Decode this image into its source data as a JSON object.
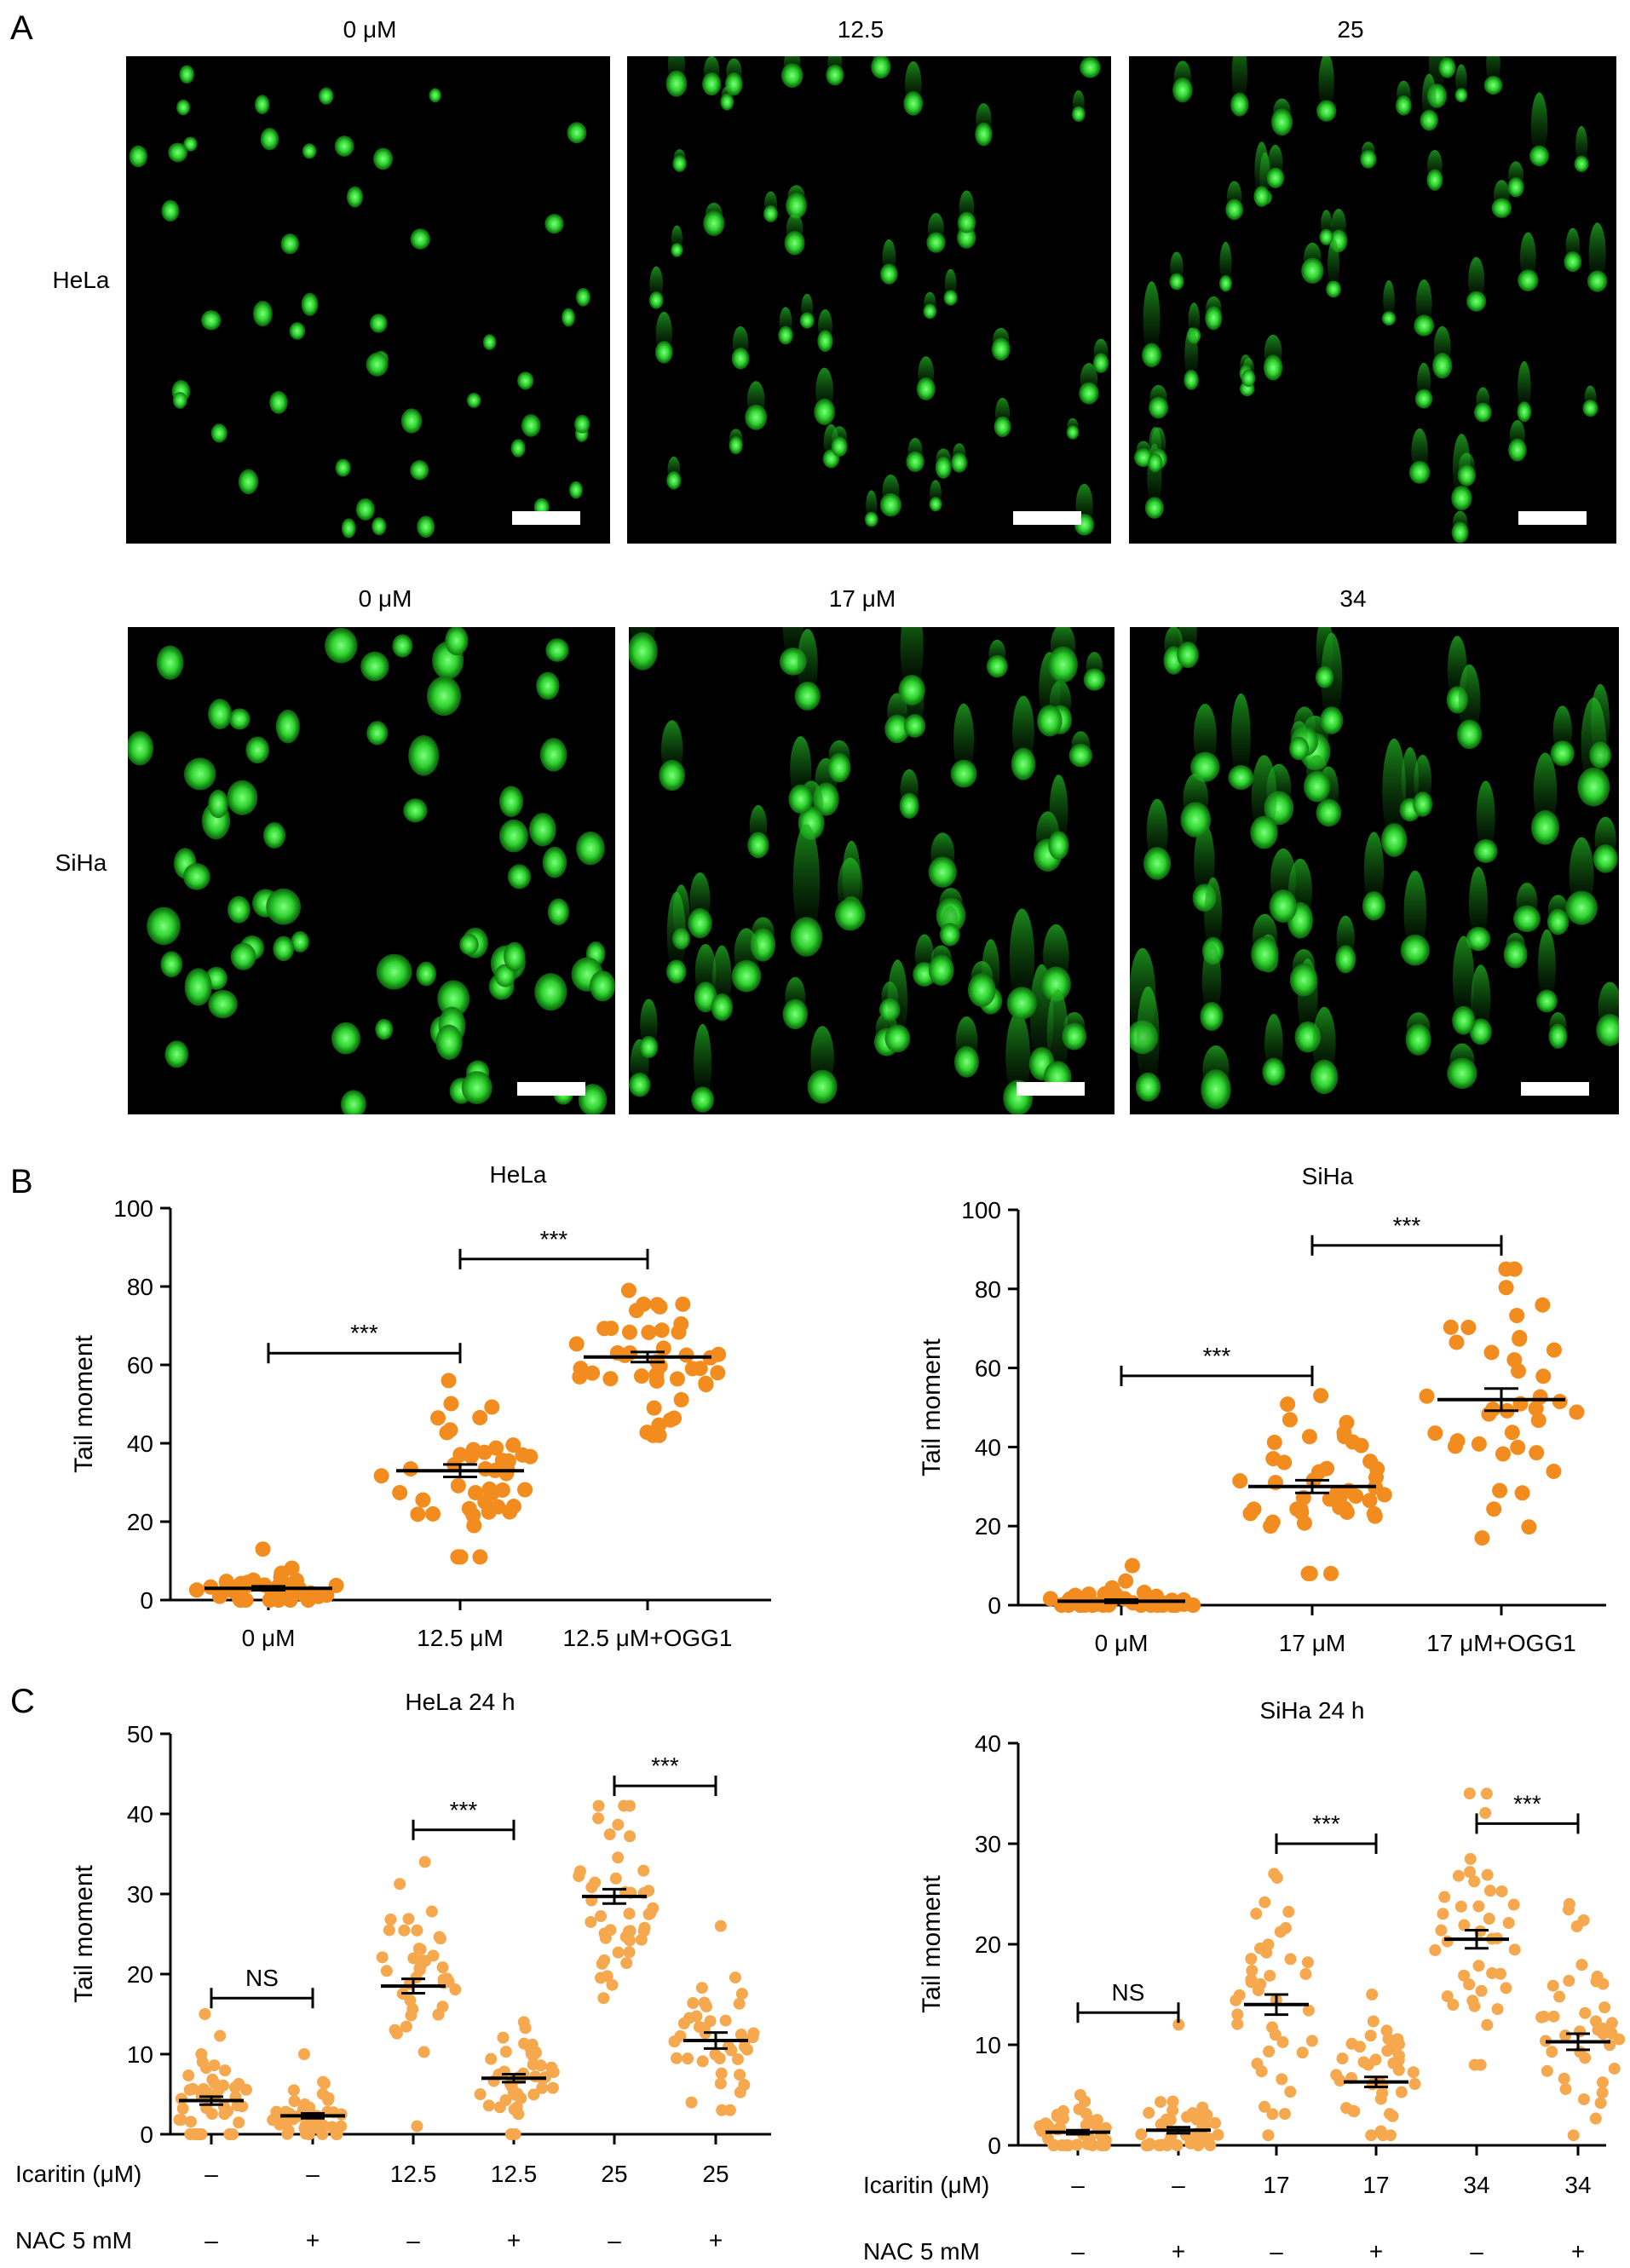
{
  "panels": {
    "A": {
      "letter": "A",
      "rows": [
        {
          "label": "HeLa",
          "images": [
            {
              "title": "0 μM",
              "comet_level": 0.0
            },
            {
              "title": "12.5",
              "comet_level": 0.4
            },
            {
              "title": "25",
              "comet_level": 0.9
            }
          ]
        },
        {
          "label": "SiHa",
          "images": [
            {
              "title": "0 μM",
              "comet_level": 0.0
            },
            {
              "title": "17 μM",
              "comet_level": 0.85
            },
            {
              "title": "34",
              "comet_level": 0.9
            }
          ]
        }
      ]
    },
    "B": {
      "letter": "B"
    },
    "C": {
      "letter": "C"
    }
  },
  "chart_data": [
    {
      "id": "B-HeLa",
      "type": "scatter",
      "title": "HeLa",
      "ylabel": "Tail moment",
      "ylim": [
        0,
        100
      ],
      "yticks": [
        0,
        20,
        40,
        60,
        80,
        100
      ],
      "categories": [
        "0 μM",
        "12.5 μM",
        "12.5 μM+OGG1"
      ],
      "groups": [
        {
          "mean": 3,
          "sem": 0.5,
          "n": 40,
          "sd": 2.2,
          "min": 0,
          "max": 13
        },
        {
          "mean": 33,
          "sem": 1.6,
          "n": 45,
          "sd": 10,
          "min": 11,
          "max": 56
        },
        {
          "mean": 62,
          "sem": 1.3,
          "n": 45,
          "sd": 8.5,
          "min": 42,
          "max": 79
        }
      ],
      "significance": [
        {
          "from": 0,
          "to": 1,
          "label": "***",
          "y": 63
        },
        {
          "from": 1,
          "to": 2,
          "label": "***",
          "y": 87
        }
      ],
      "color": "#f28c1e"
    },
    {
      "id": "B-SiHa",
      "type": "scatter",
      "title": "SiHa",
      "ylabel": "Tail moment",
      "ylim": [
        0,
        100
      ],
      "yticks": [
        0,
        20,
        40,
        60,
        80,
        100
      ],
      "categories": [
        "0 μM",
        "17 μM",
        "17 μM+OGG1"
      ],
      "groups": [
        {
          "mean": 1,
          "sem": 0.4,
          "n": 40,
          "sd": 2,
          "min": 0,
          "max": 10
        },
        {
          "mean": 30,
          "sem": 1.6,
          "n": 45,
          "sd": 10,
          "min": 8,
          "max": 53
        },
        {
          "mean": 52,
          "sem": 2.8,
          "n": 40,
          "sd": 17,
          "min": 17,
          "max": 85
        }
      ],
      "significance": [
        {
          "from": 0,
          "to": 1,
          "label": "***",
          "y": 58
        },
        {
          "from": 1,
          "to": 2,
          "label": "***",
          "y": 91
        }
      ],
      "color": "#f28c1e"
    },
    {
      "id": "C-HeLa",
      "type": "scatter",
      "title": "HeLa 24 h",
      "ylabel": "Tail moment",
      "ylim": [
        0,
        50
      ],
      "yticks": [
        0,
        10,
        20,
        30,
        40,
        50
      ],
      "row_labels": [
        "Icaritin (μM)",
        "NAC 5 mM"
      ],
      "icaritin": [
        "–",
        "–",
        "12.5",
        "12.5",
        "25",
        "25"
      ],
      "nac": [
        "–",
        "+",
        "–",
        "+",
        "–",
        "+"
      ],
      "groups": [
        {
          "mean": 4.2,
          "sem": 0.5,
          "n": 45,
          "sd": 3,
          "min": 0,
          "max": 15
        },
        {
          "mean": 2.3,
          "sem": 0.3,
          "n": 40,
          "sd": 2,
          "min": 0,
          "max": 10
        },
        {
          "mean": 18.5,
          "sem": 0.9,
          "n": 40,
          "sd": 6,
          "min": 1,
          "max": 34
        },
        {
          "mean": 7,
          "sem": 0.5,
          "n": 45,
          "sd": 3,
          "min": 0,
          "max": 14
        },
        {
          "mean": 29.7,
          "sem": 0.9,
          "n": 45,
          "sd": 6,
          "min": 17,
          "max": 41
        },
        {
          "mean": 11.7,
          "sem": 1.0,
          "n": 40,
          "sd": 6,
          "min": 3,
          "max": 26
        }
      ],
      "significance": [
        {
          "from": 0,
          "to": 1,
          "label": "NS",
          "y": 17
        },
        {
          "from": 2,
          "to": 3,
          "label": "***",
          "y": 38
        },
        {
          "from": 4,
          "to": 5,
          "label": "***",
          "y": 43.5
        }
      ],
      "color": "#f5a84e"
    },
    {
      "id": "C-SiHa",
      "type": "scatter",
      "title": "SiHa 24 h",
      "ylabel": "Tail moment",
      "ylim": [
        0,
        40
      ],
      "yticks": [
        0,
        10,
        20,
        30,
        40
      ],
      "row_labels": [
        "Icaritin (μM)",
        "NAC 5 mM"
      ],
      "icaritin": [
        "–",
        "–",
        "17",
        "17",
        "34",
        "34"
      ],
      "nac": [
        "–",
        "+",
        "–",
        "+",
        "–",
        "+"
      ],
      "groups": [
        {
          "mean": 1.3,
          "sem": 0.2,
          "n": 40,
          "sd": 1.2,
          "min": 0,
          "max": 5
        },
        {
          "mean": 1.5,
          "sem": 0.3,
          "n": 40,
          "sd": 1.8,
          "min": 0,
          "max": 12
        },
        {
          "mean": 14,
          "sem": 1.0,
          "n": 40,
          "sd": 6,
          "min": 1,
          "max": 27
        },
        {
          "mean": 6.3,
          "sem": 0.5,
          "n": 40,
          "sd": 3,
          "min": 1,
          "max": 15
        },
        {
          "mean": 20.5,
          "sem": 0.9,
          "n": 40,
          "sd": 6,
          "min": 8,
          "max": 35
        },
        {
          "mean": 10.3,
          "sem": 0.8,
          "n": 40,
          "sd": 5,
          "min": 1,
          "max": 24
        }
      ],
      "significance": [
        {
          "from": 0,
          "to": 1,
          "label": "NS",
          "y": 13.2
        },
        {
          "from": 2,
          "to": 3,
          "label": "***",
          "y": 30
        },
        {
          "from": 4,
          "to": 5,
          "label": "***",
          "y": 32
        }
      ],
      "color": "#f5a84e"
    }
  ]
}
